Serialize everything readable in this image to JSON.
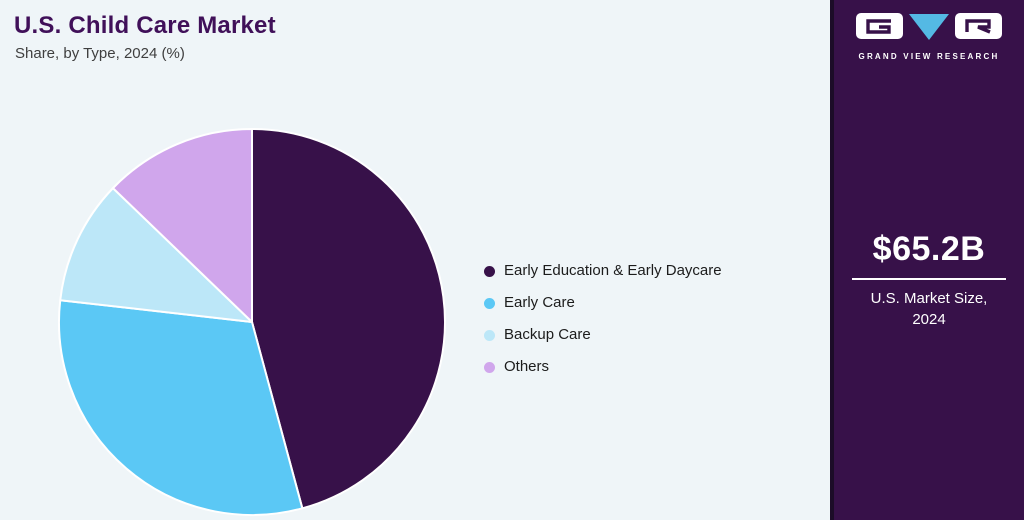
{
  "header": {
    "title": "U.S. Child Care Market",
    "subtitle": "Share, by Type, 2024 (%)"
  },
  "chart_data": {
    "type": "pie",
    "title": "U.S. Child Care Market",
    "subtitle": "Share, by Type, 2024 (%)",
    "unit": "%",
    "categories": [
      "Early Education & Early Daycare",
      "Early Care",
      "Backup Care",
      "Others"
    ],
    "values": [
      45.8,
      31.0,
      10.4,
      12.8
    ],
    "colors": [
      "#371149",
      "#5bc8f5",
      "#bce7f8",
      "#d0a6ec"
    ],
    "start_angle_deg": 0,
    "direction": "clockwise",
    "legend_position": "right",
    "slice_border_color": "#ffffff"
  },
  "sidebar": {
    "brand_name": "GRAND VIEW RESEARCH",
    "logo": {
      "left_glyph": "G",
      "center_icon": "triangle-down",
      "right_glyph": "R"
    },
    "market_size_value": "$65.2B",
    "market_size_label_line1": "U.S. Market Size,",
    "market_size_label_line2": "2024",
    "background": "#371149",
    "edge_color": "#1c0c28",
    "accent": "#54b9e4"
  },
  "colors": {
    "page_background": "#eff5f8",
    "title_text": "#401059",
    "subtitle_text": "#3f3f3f",
    "legend_text": "#1c1c1c"
  }
}
